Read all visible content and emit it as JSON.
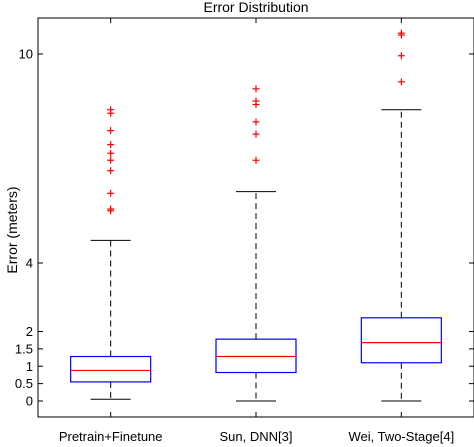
{
  "chart_data": {
    "type": "box",
    "title": "Error Distribution",
    "ylabel": "Error (meters)",
    "xlabel": "",
    "categories": [
      "Pretrain+Finetune",
      "Sun, DNN[3]",
      "Wei, Two-Stage[4]"
    ],
    "ylim": [
      -0.45,
      10.95
    ],
    "y_ticks": [
      0,
      0.5,
      1,
      1.5,
      2,
      4,
      10
    ],
    "y_tick_labels": [
      "0",
      "0.5",
      "1",
      "1.5",
      "2",
      "4",
      "10"
    ],
    "grid": false,
    "boxes": [
      {
        "name": "Pretrain+Finetune",
        "whisker_low": 0.05,
        "q1": 0.55,
        "median": 0.88,
        "q3": 1.28,
        "whisker_high": 4.65,
        "outliers": [
          5.5,
          5.55,
          6.0,
          6.65,
          6.95,
          7.15,
          7.4,
          7.8,
          8.3,
          8.4
        ]
      },
      {
        "name": "Sun, DNN[3]",
        "whisker_low": 0.0,
        "q1": 0.82,
        "median": 1.28,
        "q3": 1.78,
        "whisker_high": 6.05,
        "outliers": [
          6.95,
          7.7,
          8.05,
          8.55,
          8.65,
          9.0
        ]
      },
      {
        "name": "Wei, Two-Stage[4]",
        "whisker_low": 0.0,
        "q1": 1.1,
        "median": 1.68,
        "q3": 2.4,
        "whisker_high": 8.4,
        "outliers": [
          9.2,
          9.95,
          10.5,
          10.55
        ]
      }
    ],
    "colors": {
      "box": "#0000ff",
      "median": "#ff0000",
      "whisker": "#000000",
      "outlier": "#ff0000"
    }
  }
}
